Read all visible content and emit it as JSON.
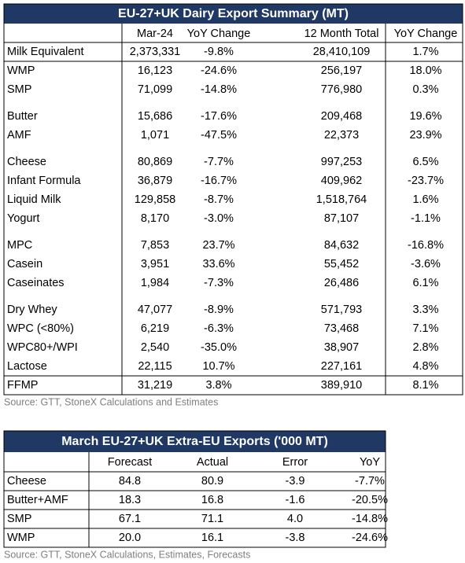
{
  "table1": {
    "title": "EU-27+UK Dairy Export Summary (MT)",
    "headers": [
      "Mar-24",
      "YoY Change",
      "12 Month Total",
      "YoY Change"
    ],
    "groups": [
      [
        [
          "Milk Equivalent",
          "2,373,331",
          "-9.8%",
          "28,410,109",
          "1.7%"
        ],
        [
          "WMP",
          "16,123",
          "-24.6%",
          "256,197",
          "18.0%"
        ],
        [
          "SMP",
          "71,099",
          "-14.8%",
          "776,980",
          "0.3%"
        ]
      ],
      [
        [
          "Butter",
          "15,686",
          "-17.6%",
          "209,468",
          "19.6%"
        ],
        [
          "AMF",
          "1,071",
          "-47.5%",
          "22,373",
          "23.9%"
        ]
      ],
      [
        [
          "Cheese",
          "80,869",
          "-7.7%",
          "997,253",
          "6.5%"
        ],
        [
          "Infant Formula",
          "36,879",
          "-16.7%",
          "409,962",
          "-23.7%"
        ],
        [
          "Liquid Milk",
          "129,858",
          "-8.7%",
          "1,518,764",
          "1.6%"
        ],
        [
          "Yogurt",
          "8,170",
          "-3.0%",
          "87,107",
          "-1.1%"
        ]
      ],
      [
        [
          "MPC",
          "7,853",
          "23.7%",
          "84,632",
          "-16.8%"
        ],
        [
          "Casein",
          "3,951",
          "33.6%",
          "55,452",
          "-3.6%"
        ],
        [
          "Caseinates",
          "1,984",
          "-7.3%",
          "26,486",
          "6.1%"
        ]
      ],
      [
        [
          "Dry Whey",
          "47,077",
          "-8.9%",
          "571,793",
          "3.3%"
        ],
        [
          "WPC (<80%)",
          "6,219",
          "-6.3%",
          "73,468",
          "7.1%"
        ],
        [
          "WPC80+/WPI",
          "2,540",
          "-35.0%",
          "38,907",
          "2.8%"
        ],
        [
          "Lactose",
          "22,115",
          "10.7%",
          "227,161",
          "4.8%"
        ],
        [
          "FFMP",
          "31,219",
          "3.8%",
          "389,910",
          "8.1%"
        ]
      ]
    ],
    "source": "Source: GTT, StoneX Calculations and Estimates"
  },
  "table2": {
    "title": "March EU-27+UK Extra-EU Exports ('000 MT)",
    "headers": [
      "Forecast",
      "Actual",
      "Error",
      "YoY"
    ],
    "rows": [
      [
        "Cheese",
        "84.8",
        "80.9",
        "-3.9",
        "-7.7%"
      ],
      [
        "Butter+AMF",
        "18.3",
        "16.8",
        "-1.6",
        "-20.5%"
      ],
      [
        "SMP",
        "67.1",
        "71.1",
        "4.0",
        "-14.8%"
      ],
      [
        "WMP",
        "20.0",
        "16.1",
        "-3.8",
        "-24.6%"
      ]
    ],
    "source": "Source: GTT, StoneX Calculations, Estimates, Forecasts"
  }
}
